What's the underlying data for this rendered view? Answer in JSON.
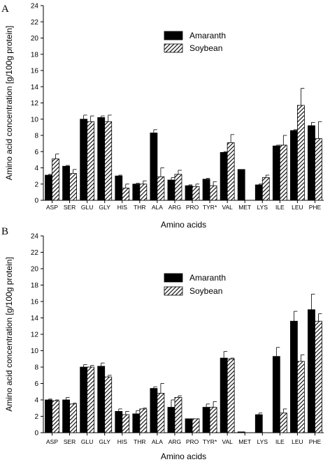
{
  "chart_data": [
    {
      "type": "bar",
      "panel_label": "A",
      "xlabel": "Amino acids",
      "ylabel": "Amino acid concentration [g/100g protein]",
      "ylim": [
        0,
        24
      ],
      "yticks": [
        0,
        2,
        4,
        6,
        8,
        10,
        12,
        14,
        16,
        18,
        20,
        22,
        24
      ],
      "categories": [
        "ASP",
        "SER",
        "GLU",
        "GLY",
        "HIS",
        "THR",
        "ALA",
        "ARG",
        "PRO",
        "TYR*",
        "VAL",
        "MET",
        "LYS",
        "ILE",
        "LEU",
        "PHE"
      ],
      "legend_position": "upper-center",
      "series": [
        {
          "name": "Amaranth",
          "fill": "solid",
          "color": "#000000",
          "values": [
            3.1,
            4.2,
            10.0,
            10.2,
            3.0,
            2.0,
            8.3,
            2.5,
            1.8,
            2.6,
            5.9,
            3.8,
            1.9,
            6.7,
            8.6,
            9.2
          ],
          "errors": [
            0.1,
            0.1,
            0.5,
            0.2,
            0.1,
            0.1,
            0.4,
            0.3,
            0.1,
            0.1,
            0.1,
            0.0,
            0.1,
            0.1,
            0.1,
            0.4
          ]
        },
        {
          "name": "Soybean",
          "fill": "hatched",
          "color": "#555555",
          "values": [
            5.1,
            3.3,
            9.7,
            9.7,
            1.5,
            2.0,
            2.9,
            3.2,
            1.7,
            1.8,
            7.1,
            0.0,
            2.8,
            6.8,
            11.7,
            7.6
          ],
          "errors": [
            0.6,
            0.5,
            0.7,
            0.8,
            0.5,
            0.4,
            1.1,
            0.5,
            0.3,
            0.5,
            1.0,
            0.0,
            0.3,
            1.2,
            2.1,
            2.1
          ]
        }
      ]
    },
    {
      "type": "bar",
      "panel_label": "B",
      "xlabel": "Amino acids",
      "ylabel": "Amino acid concentration [g/100g protein]",
      "ylim": [
        0,
        24
      ],
      "yticks": [
        0,
        2,
        4,
        6,
        8,
        10,
        12,
        14,
        16,
        18,
        20,
        22,
        24
      ],
      "categories": [
        "ASP",
        "SER",
        "GLU",
        "GLY",
        "HIS",
        "THR",
        "ALA",
        "ARG",
        "PRO",
        "TYR*",
        "VAL",
        "MET",
        "LYS",
        "ILE",
        "LEU",
        "PHE"
      ],
      "legend_position": "upper-center",
      "series": [
        {
          "name": "Amaranth",
          "fill": "solid",
          "color": "#000000",
          "values": [
            4.0,
            4.0,
            8.0,
            8.1,
            2.6,
            2.3,
            5.4,
            3.1,
            1.7,
            3.1,
            9.1,
            0.1,
            2.2,
            9.3,
            13.6,
            15.0
          ],
          "errors": [
            0.1,
            0.3,
            0.3,
            0.4,
            0.3,
            0.4,
            0.2,
            0.9,
            0.0,
            0.4,
            0.8,
            0.0,
            0.2,
            1.1,
            1.2,
            1.9
          ]
        },
        {
          "name": "Soybean",
          "fill": "hatched",
          "color": "#555555",
          "values": [
            3.9,
            3.5,
            8.0,
            6.8,
            2.2,
            2.9,
            4.8,
            4.3,
            1.7,
            3.1,
            9.0,
            0.0,
            0.0,
            2.4,
            8.7,
            13.6
          ],
          "errors": [
            0.1,
            0.1,
            0.2,
            0.2,
            0.4,
            0.1,
            1.2,
            0.2,
            0.0,
            0.7,
            0.1,
            0.0,
            0.0,
            0.5,
            0.8,
            0.9
          ]
        }
      ]
    }
  ]
}
